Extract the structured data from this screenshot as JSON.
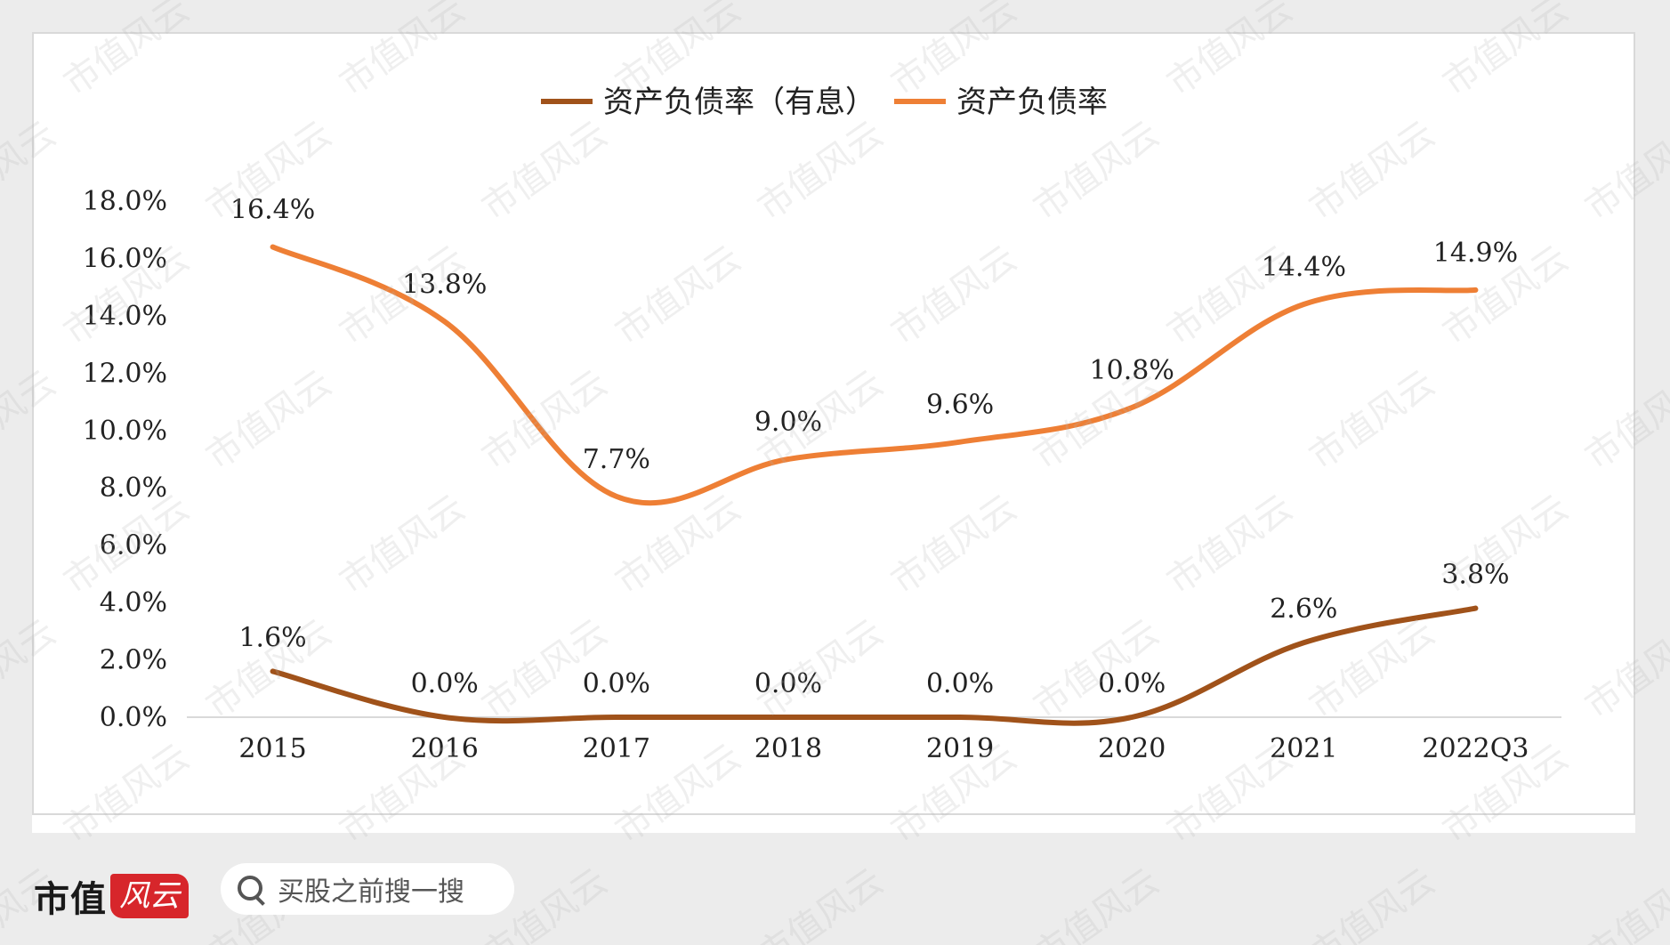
{
  "chart_data": {
    "type": "line",
    "categories": [
      "2015",
      "2016",
      "2017",
      "2018",
      "2019",
      "2020",
      "2021",
      "2022Q3"
    ],
    "series": [
      {
        "name": "资产负债率（有息）",
        "color": "#a0521a",
        "values": [
          1.6,
          0.0,
          0.0,
          0.0,
          0.0,
          0.0,
          2.6,
          3.8
        ],
        "labels": [
          "1.6%",
          "0.0%",
          "0.0%",
          "0.0%",
          "0.0%",
          "0.0%",
          "2.6%",
          "3.8%"
        ]
      },
      {
        "name": "资产负债率",
        "color": "#ee7f35",
        "values": [
          16.4,
          13.8,
          7.7,
          9.0,
          9.6,
          10.8,
          14.4,
          14.9
        ],
        "labels": [
          "16.4%",
          "13.8%",
          "7.7%",
          "9.0%",
          "9.6%",
          "10.8%",
          "14.4%",
          "14.9%"
        ]
      }
    ],
    "y_ticks": [
      "0.0%",
      "2.0%",
      "4.0%",
      "6.0%",
      "8.0%",
      "10.0%",
      "12.0%",
      "14.0%",
      "16.0%",
      "18.0%"
    ],
    "ylim": [
      0,
      18
    ],
    "legend_position": "top",
    "grid": false
  },
  "watermark": "市值风云",
  "footer": {
    "brand_text": "市值",
    "brand_badge": "风云",
    "search_placeholder": "买股之前搜一搜"
  }
}
